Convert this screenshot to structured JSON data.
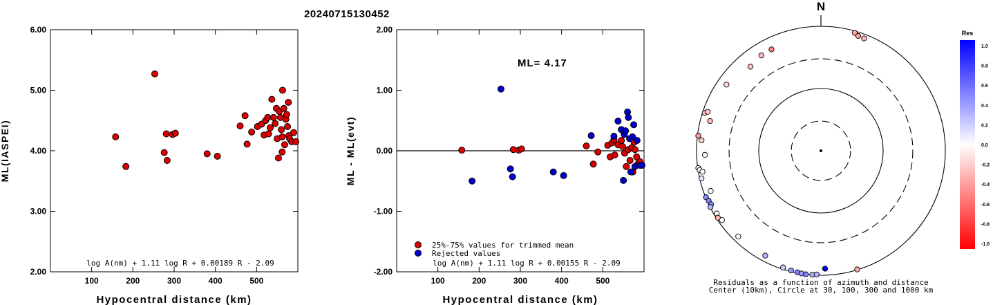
{
  "title": "20240715130452",
  "north_label": "N",
  "chart_data": [
    {
      "type": "scatter",
      "ylabel": "ML(IASPEI)",
      "xlabel": "Hypocentral distance (km)",
      "formula": "log A(nm) + 1.11 log R + 0.00189 R - 2.09",
      "xlim": [
        0,
        600
      ],
      "ylim": [
        2.0,
        6.0
      ],
      "x_ticks": [
        100,
        200,
        300,
        400,
        500
      ],
      "y_ticks": [
        "2.00",
        "3.00",
        "4.00",
        "5.00",
        "6.00"
      ],
      "series": [
        {
          "color": "#dd0000",
          "points": [
            [
              158,
              4.23
            ],
            [
              183,
              3.74
            ],
            [
              253,
              5.27
            ],
            [
              276,
              3.97
            ],
            [
              281,
              4.28
            ],
            [
              283,
              3.84
            ],
            [
              296,
              4.27
            ],
            [
              303,
              4.29
            ],
            [
              380,
              3.95
            ],
            [
              405,
              3.91
            ],
            [
              460,
              4.41
            ],
            [
              472,
              4.58
            ],
            [
              477,
              4.11
            ],
            [
              488,
              4.31
            ],
            [
              502,
              4.4
            ],
            [
              512,
              4.44
            ],
            [
              518,
              4.26
            ],
            [
              522,
              4.5
            ],
            [
              527,
              4.55
            ],
            [
              529,
              4.28
            ],
            [
              533,
              4.38
            ],
            [
              537,
              4.85
            ],
            [
              541,
              4.55
            ],
            [
              545,
              4.45
            ],
            [
              548,
              4.7
            ],
            [
              550,
              4.2
            ],
            [
              553,
              3.88
            ],
            [
              555,
              4.65
            ],
            [
              558,
              4.55
            ],
            [
              560,
              4.35
            ],
            [
              562,
              4.23
            ],
            [
              562,
              3.98
            ],
            [
              563,
              5.0
            ],
            [
              566,
              4.7
            ],
            [
              568,
              4.1
            ],
            [
              571,
              4.52
            ],
            [
              573,
              4.6
            ],
            [
              575,
              4.4
            ],
            [
              577,
              4.8
            ],
            [
              578,
              4.25
            ],
            [
              580,
              4.2
            ],
            [
              585,
              4.15
            ],
            [
              590,
              4.3
            ],
            [
              595,
              4.15
            ]
          ]
        }
      ]
    },
    {
      "type": "scatter",
      "ylabel": "ML - ML(evt)",
      "xlabel": "Hypocentral distance (km)",
      "annotation": "ML= 4.17",
      "formula": "log A(nm) + 1.11 log R + 0.00155 R - 2.09",
      "xlim": [
        0,
        600
      ],
      "ylim": [
        -2.0,
        2.0
      ],
      "x_ticks": [
        100,
        200,
        300,
        400,
        500
      ],
      "y_ticks": [
        "-2.00",
        "-1.00",
        "0.00",
        "1.00",
        "2.00"
      ],
      "legend": [
        "25%-75% values for trimmed mean",
        "Rejected values"
      ],
      "series": [
        {
          "name": "25%-75% values for trimmed mean",
          "color": "#dd0000",
          "points": [
            [
              158,
              0.01
            ],
            [
              283,
              0.02
            ],
            [
              296,
              0.01
            ],
            [
              303,
              0.03
            ],
            [
              460,
              0.08
            ],
            [
              477,
              -0.22
            ],
            [
              488,
              -0.02
            ],
            [
              512,
              0.09
            ],
            [
              518,
              -0.1
            ],
            [
              522,
              0.13
            ],
            [
              527,
              0.18
            ],
            [
              529,
              -0.07
            ],
            [
              537,
              0.1
            ],
            [
              545,
              0.17
            ],
            [
              548,
              0.07
            ],
            [
              553,
              -0.04
            ],
            [
              557,
              -0.26
            ],
            [
              562,
              0.02
            ],
            [
              566,
              -0.16
            ],
            [
              570,
              0.05
            ],
            [
              573,
              -0.35
            ],
            [
              576,
              0.14
            ],
            [
              578,
              0.02
            ],
            [
              582,
              -0.1
            ],
            [
              586,
              -0.21
            ],
            [
              590,
              -0.18
            ]
          ]
        },
        {
          "name": "Rejected values",
          "color": "#0000cc",
          "points": [
            [
              183,
              -0.5
            ],
            [
              253,
              1.02
            ],
            [
              276,
              -0.3
            ],
            [
              281,
              -0.43
            ],
            [
              380,
              -0.35
            ],
            [
              405,
              -0.41
            ],
            [
              472,
              0.25
            ],
            [
              527,
              0.24
            ],
            [
              537,
              0.49
            ],
            [
              545,
              0.35
            ],
            [
              550,
              -0.49
            ],
            [
              552,
              0.27
            ],
            [
              555,
              0.33
            ],
            [
              560,
              0.64
            ],
            [
              562,
              0.55
            ],
            [
              565,
              0.2
            ],
            [
              568,
              -0.35
            ],
            [
              572,
              0.23
            ],
            [
              575,
              0.43
            ],
            [
              578,
              -0.26
            ],
            [
              583,
              0.17
            ],
            [
              590,
              -0.24
            ],
            [
              595,
              -0.24
            ]
          ]
        }
      ]
    },
    {
      "type": "scatter",
      "subtype": "polar",
      "caption_line1": "Residuals as a function of azimuth and distance",
      "caption_line2": "Center (10km), Circle at 30, 100, 300 and 1000 km",
      "rings_km": [
        30,
        100,
        300,
        1000
      ],
      "colorbar": {
        "title": "Res",
        "labels": [
          "1.0",
          "0.8",
          "0.6",
          "0.4",
          "0.2",
          "0.0",
          "-0.2",
          "-0.4",
          "-0.6",
          "-0.8",
          "-1.0"
        ],
        "top_color": "#0000ff",
        "mid_color": "#ffffff",
        "bottom_color": "#ff0000"
      },
      "stations": [
        {
          "az": 16,
          "dist": 935,
          "res": -0.35
        },
        {
          "az": 18,
          "dist": 870,
          "res": -0.4
        },
        {
          "az": 21,
          "dist": 858,
          "res": -0.3
        },
        {
          "az": 334,
          "dist": 650,
          "res": -0.5
        },
        {
          "az": 328,
          "dist": 640,
          "res": -0.3
        },
        {
          "az": 320,
          "dist": 580,
          "res": -0.25
        },
        {
          "az": 305,
          "dist": 715,
          "res": -0.15
        },
        {
          "az": 288,
          "dist": 925,
          "res": -0.3
        },
        {
          "az": 289,
          "dist": 840,
          "res": -0.2
        },
        {
          "az": 285,
          "dist": 700,
          "res": -0.3
        },
        {
          "az": 277,
          "dist": 970,
          "res": -0.4
        },
        {
          "az": 275,
          "dist": 845,
          "res": -0.2
        },
        {
          "az": 268,
          "dist": 735,
          "res": 0.0
        },
        {
          "az": 262,
          "dist": 980,
          "res": 0.05
        },
        {
          "az": 261,
          "dist": 940,
          "res": 0.02
        },
        {
          "az": 257,
          "dist": 935,
          "res": 0.1
        },
        {
          "az": 260,
          "dist": 860,
          "res": 0.0
        },
        {
          "az": 250,
          "dist": 770,
          "res": 0.0
        },
        {
          "az": 248,
          "dist": 985,
          "res": 0.45
        },
        {
          "az": 246,
          "dist": 945,
          "res": 0.5
        },
        {
          "az": 244,
          "dist": 925,
          "res": 0.4
        },
        {
          "az": 243,
          "dist": 985,
          "res": 0.3
        },
        {
          "az": 239,
          "dist": 905,
          "res": 0.0
        },
        {
          "az": 237,
          "dist": 945,
          "res": -0.3
        },
        {
          "az": 235,
          "dist": 875,
          "res": 0.0
        },
        {
          "az": 224,
          "dist": 820,
          "res": 0.0
        },
        {
          "az": 208,
          "dist": 810,
          "res": 0.3
        },
        {
          "az": 198,
          "dist": 935,
          "res": 0.2
        },
        {
          "az": 194,
          "dist": 960,
          "res": 0.4
        },
        {
          "az": 191,
          "dist": 975,
          "res": 0.5
        },
        {
          "az": 189,
          "dist": 990,
          "res": 0.4
        },
        {
          "az": 187,
          "dist": 1000,
          "res": 0.5
        },
        {
          "az": 184,
          "dist": 990,
          "res": 0.3
        },
        {
          "az": 182,
          "dist": 975,
          "res": 0.3
        },
        {
          "az": 178,
          "dist": 785,
          "res": 1.0
        },
        {
          "az": 163,
          "dist": 985,
          "res": -0.35
        }
      ]
    }
  ]
}
